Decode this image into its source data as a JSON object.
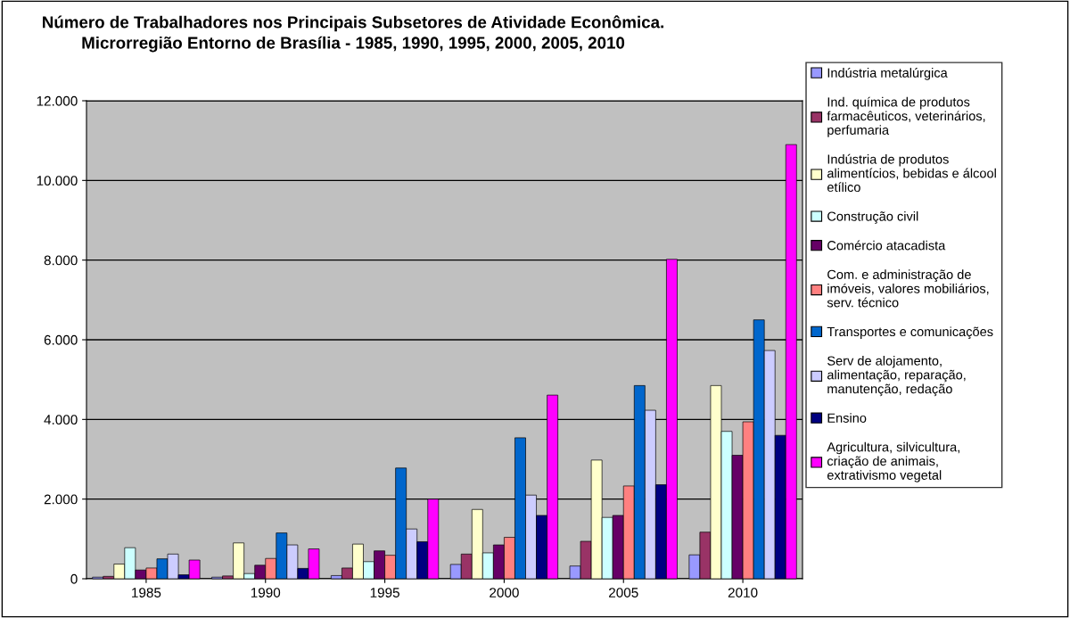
{
  "chart_data": {
    "type": "bar",
    "title": "Número de Trabalhadores nos Principais Subsetores de Atividade Econômica.\nMicrorregião Entorno de Brasília - 1985, 1990, 1995, 2000, 2005, 2010",
    "categories": [
      "1985",
      "1990",
      "1995",
      "2000",
      "2005",
      "2010"
    ],
    "series": [
      {
        "name": "Indústria metalúrgica",
        "color": "#9999ff",
        "values": [
          40,
          40,
          80,
          360,
          320,
          600
        ]
      },
      {
        "name": "Ind. química de produtos farmacêuticos, veterinários, perfumaria",
        "color": "#993366",
        "values": [
          60,
          70,
          270,
          620,
          940,
          1170
        ]
      },
      {
        "name": "Indústria de produtos alimentícios, bebidas e álcool etílico",
        "color": "#ffffcc",
        "values": [
          370,
          900,
          870,
          1740,
          2980,
          4850
        ]
      },
      {
        "name": "Construção civil",
        "color": "#ccffff",
        "values": [
          780,
          130,
          430,
          650,
          1540,
          3700
        ]
      },
      {
        "name": "Comércio atacadista",
        "color": "#660066",
        "values": [
          220,
          340,
          700,
          850,
          1590,
          3100
        ]
      },
      {
        "name": "Com. e administração de imóveis, valores mobiliários, serv. técnico",
        "color": "#ff8080",
        "values": [
          270,
          510,
          590,
          1040,
          2330,
          3940
        ]
      },
      {
        "name": "Transportes e comunicações",
        "color": "#0066cc",
        "values": [
          500,
          1150,
          2780,
          3540,
          4850,
          6500
        ]
      },
      {
        "name": "Serv de alojamento, alimentação, reparação, manutenção, redação",
        "color": "#ccccff",
        "values": [
          620,
          850,
          1250,
          2100,
          4230,
          5730
        ]
      },
      {
        "name": "Ensino",
        "color": "#000080",
        "values": [
          100,
          260,
          930,
          1590,
          2360,
          3600
        ]
      },
      {
        "name": "Agricultura, silvicultura, criação de animais, extrativismo vegetal",
        "color": "#ff00ff",
        "values": [
          470,
          750,
          2000,
          4610,
          8020,
          10900
        ]
      }
    ],
    "ylim": [
      0,
      12000
    ],
    "yticks": [
      {
        "value": 0,
        "label": "0"
      },
      {
        "value": 2000,
        "label": "2.000"
      },
      {
        "value": 4000,
        "label": "4.000"
      },
      {
        "value": 6000,
        "label": "6.000"
      },
      {
        "value": 8000,
        "label": "8.000"
      },
      {
        "value": 10000,
        "label": "10.000"
      },
      {
        "value": 12000,
        "label": "12.000"
      }
    ],
    "grid": "y",
    "legend": "right"
  }
}
